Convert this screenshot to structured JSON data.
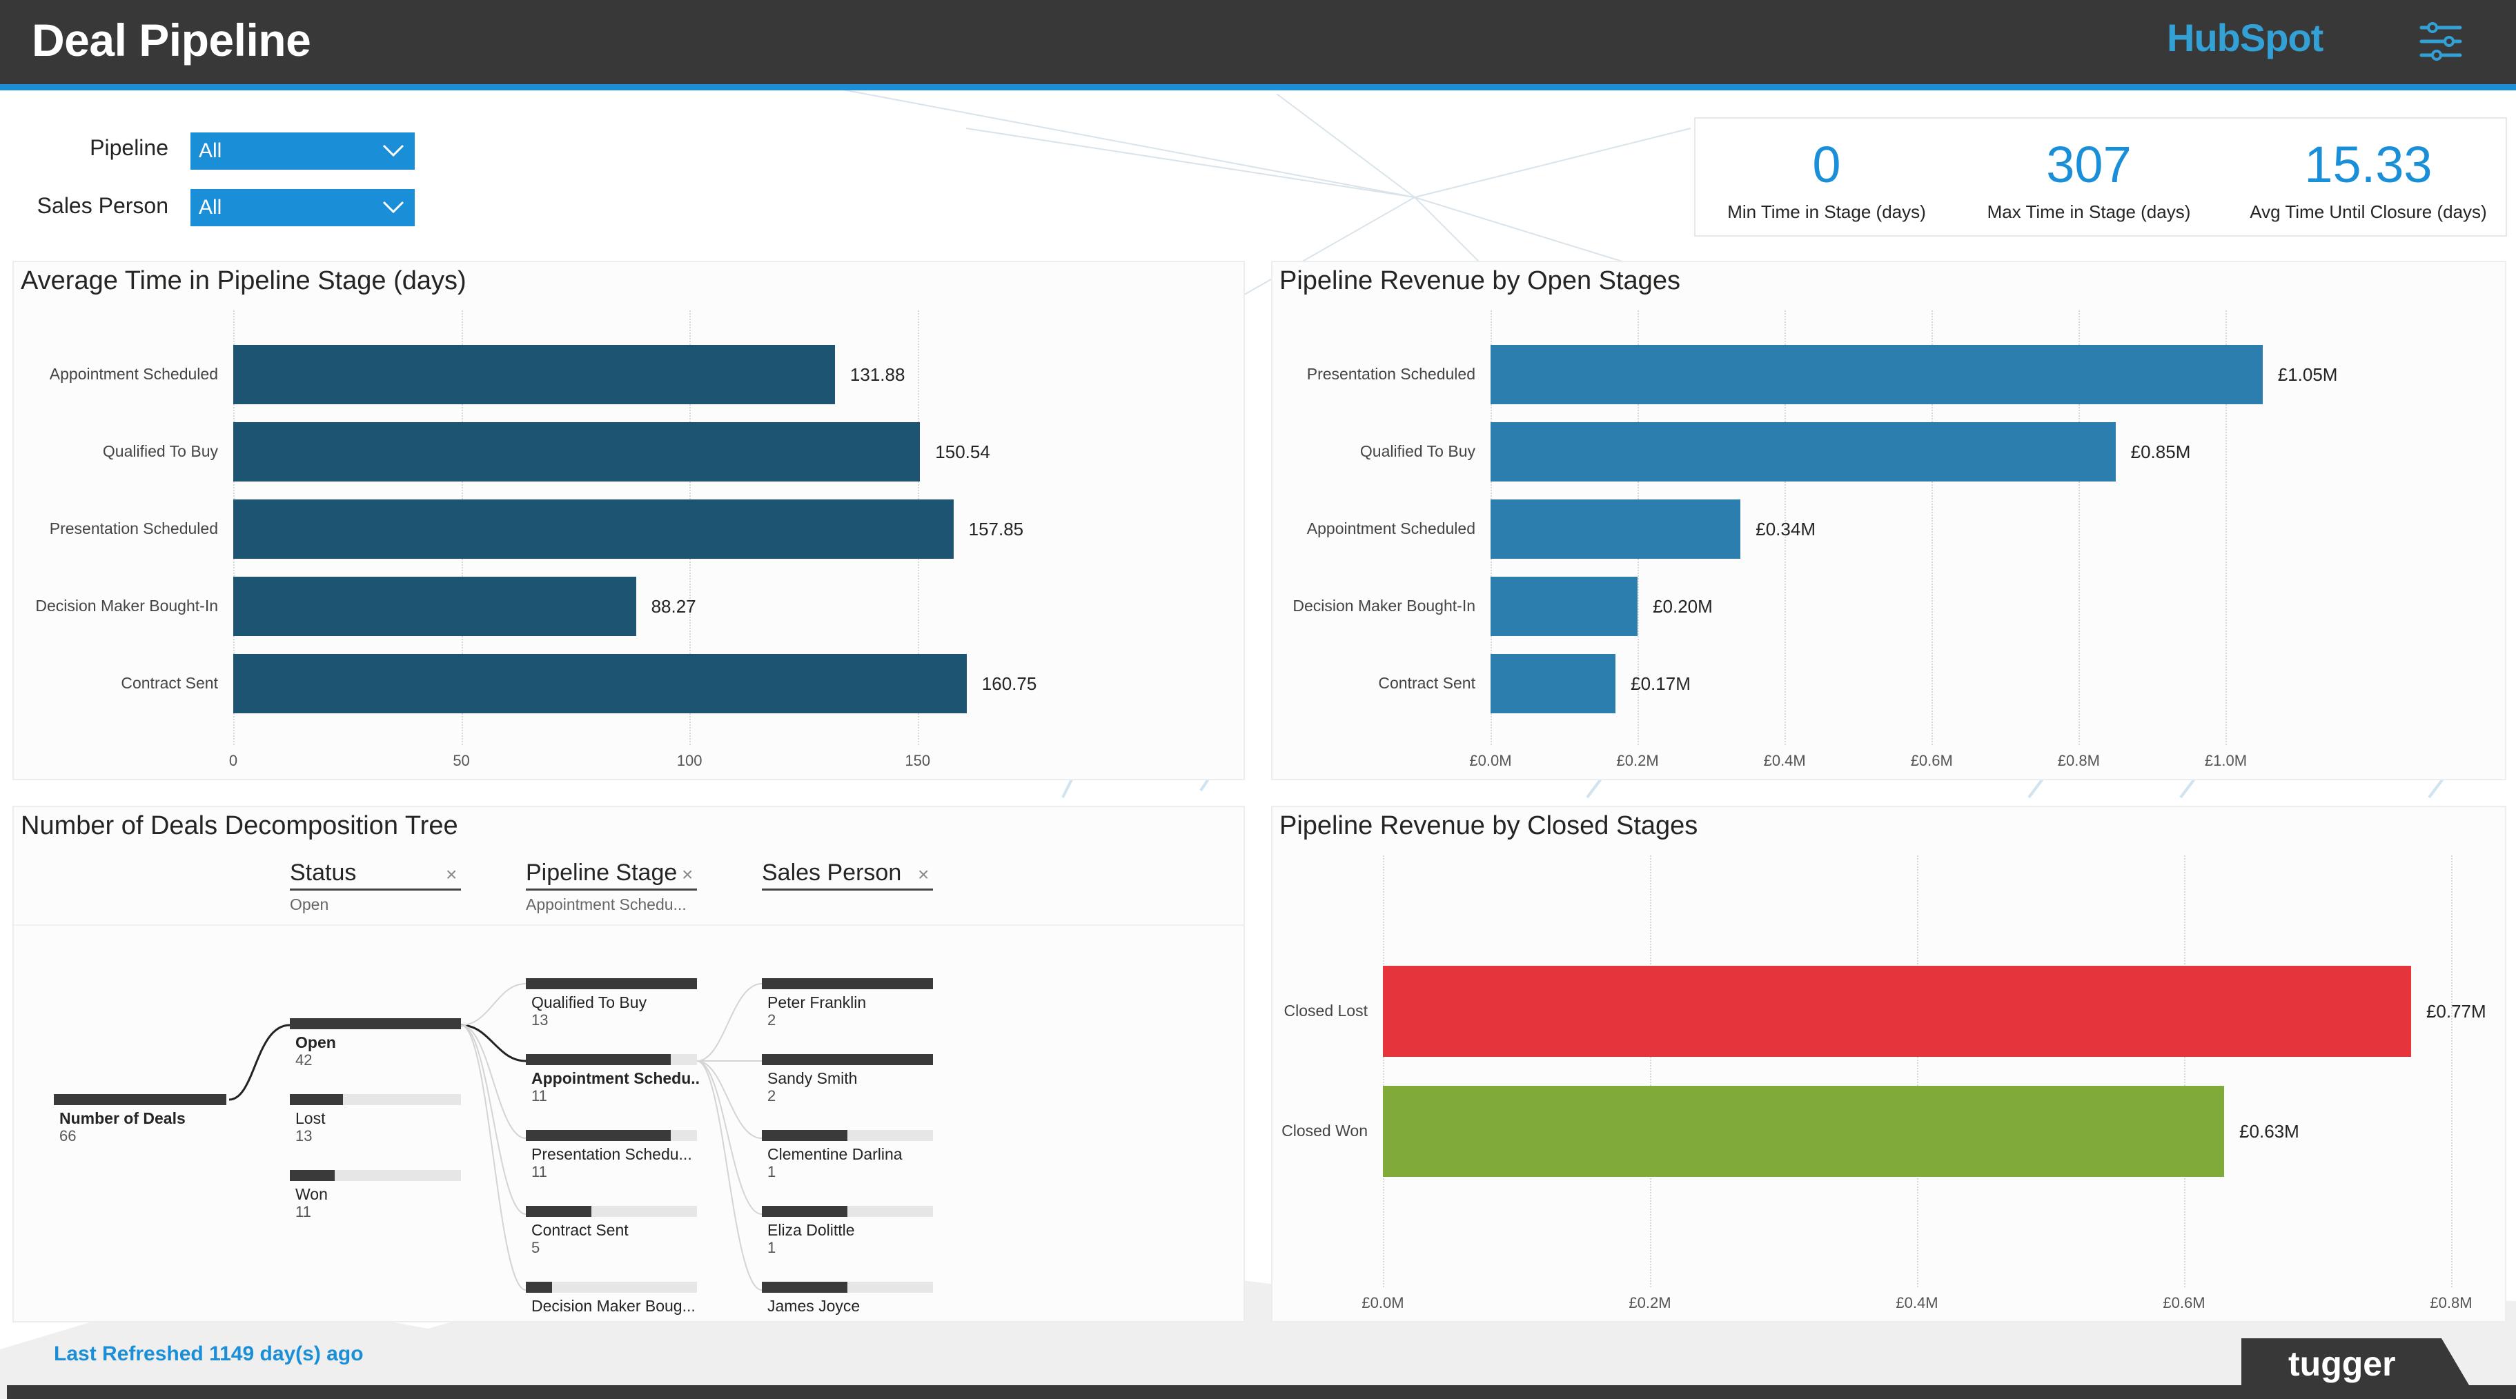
{
  "header": {
    "title": "Deal Pipeline",
    "logo_text": "HubSpot",
    "filter_icon": "filter-settings-icon",
    "colors": {
      "bar": "#383838",
      "accent": "#1a8fd8"
    }
  },
  "slicers": [
    {
      "label": "Pipeline",
      "value": "All"
    },
    {
      "label": "Sales Person",
      "value": "All"
    }
  ],
  "kpis": [
    {
      "value": "0",
      "label": "Min Time in Stage (days)"
    },
    {
      "value": "307",
      "label": "Max Time in Stage (days)"
    },
    {
      "value": "15.33",
      "label": "Avg Time Until Closure (days)"
    }
  ],
  "chart_data": [
    {
      "type": "bar",
      "orientation": "horizontal",
      "title": "Average Time in Pipeline Stage (days)",
      "categories": [
        "Appointment Scheduled",
        "Qualified To Buy",
        "Presentation Scheduled",
        "Decision Maker Bought-In",
        "Contract Sent"
      ],
      "values": [
        131.88,
        150.54,
        157.85,
        88.27,
        160.75
      ],
      "data_labels": [
        "131.88",
        "150.54",
        "157.85",
        "88.27",
        "160.75"
      ],
      "xlim": [
        0,
        175
      ],
      "ticks": [
        0,
        50,
        100,
        150
      ],
      "tick_labels": [
        "0",
        "50",
        "100",
        "150"
      ],
      "grid": true,
      "color": "#1c5472"
    },
    {
      "type": "bar",
      "orientation": "horizontal",
      "title": "Pipeline Revenue by Open Stages",
      "categories": [
        "Presentation Scheduled",
        "Qualified To Buy",
        "Appointment Scheduled",
        "Decision Maker Bought-In",
        "Contract Sent"
      ],
      "values": [
        1.05,
        0.85,
        0.34,
        0.2,
        0.17
      ],
      "data_labels": [
        "£1.05M",
        "£0.85M",
        "£0.34M",
        "£0.20M",
        "£0.17M"
      ],
      "xlim": [
        0,
        1.1
      ],
      "ticks": [
        0,
        0.2,
        0.4,
        0.6,
        0.8,
        1.0
      ],
      "tick_labels": [
        "£0.0M",
        "£0.2M",
        "£0.4M",
        "£0.6M",
        "£0.8M",
        "£1.0M"
      ],
      "grid": true,
      "color": "#2b7ead"
    },
    {
      "type": "bar",
      "orientation": "horizontal",
      "title": "Pipeline Revenue by Closed Stages",
      "categories": [
        "Closed Lost",
        "Closed Won"
      ],
      "values": [
        0.77,
        0.63
      ],
      "data_labels": [
        "£0.77M",
        "£0.63M"
      ],
      "colors": [
        "#e6343c",
        "#80ab38"
      ],
      "xlim": [
        0,
        0.8
      ],
      "ticks": [
        0,
        0.2,
        0.4,
        0.6,
        0.8
      ],
      "tick_labels": [
        "£0.0M",
        "£0.2M",
        "£0.4M",
        "£0.6M",
        "£0.8M"
      ],
      "grid": true
    }
  ],
  "tree": {
    "title": "Number of Deals Decomposition Tree",
    "levels": [
      {
        "header": "Status",
        "sub": "Open",
        "close": "×"
      },
      {
        "header": "Pipeline Stage",
        "sub": "Appointment Schedu...",
        "close": "×"
      },
      {
        "header": "Sales Person",
        "sub": "",
        "close": "×"
      }
    ],
    "root": {
      "label": "Number of Deals",
      "count": "66"
    },
    "status": [
      {
        "label": "Open",
        "count": "42",
        "value": 42,
        "selected": true
      },
      {
        "label": "Lost",
        "count": "13",
        "value": 13
      },
      {
        "label": "Won",
        "count": "11",
        "value": 11
      }
    ],
    "stages": [
      {
        "label": "Qualified To Buy",
        "count": "13",
        "value": 13
      },
      {
        "label": "Appointment Schedu...",
        "count": "11",
        "value": 11,
        "selected": true
      },
      {
        "label": "Presentation Schedu...",
        "count": "11",
        "value": 11
      },
      {
        "label": "Contract Sent",
        "count": "5",
        "value": 5
      },
      {
        "label": "Decision Maker Boug...",
        "count": "",
        "value": 2
      }
    ],
    "people": [
      {
        "label": "Peter Franklin",
        "count": "2",
        "value": 2
      },
      {
        "label": "Sandy Smith",
        "count": "2",
        "value": 2
      },
      {
        "label": "Clementine Darlina",
        "count": "1",
        "value": 1
      },
      {
        "label": "Eliza Dolittle",
        "count": "1",
        "value": 1
      },
      {
        "label": "James Joyce",
        "count": "",
        "value": 1
      }
    ]
  },
  "footer": {
    "refreshed": "Last Refreshed 1149 day(s) ago",
    "brand": "tugger"
  }
}
